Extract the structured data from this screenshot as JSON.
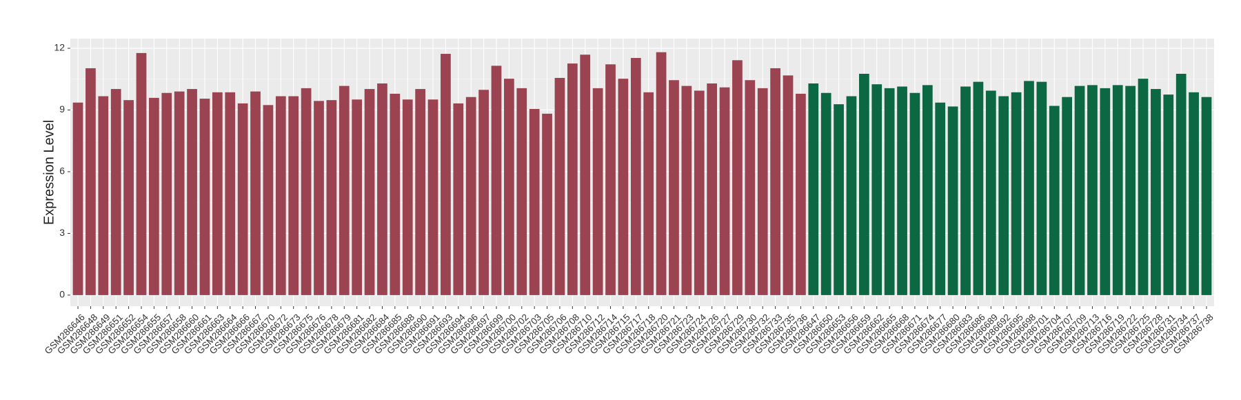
{
  "chart_data": {
    "type": "bar",
    "y_label": "Expression Level",
    "categories": [
      "GSM286646",
      "GSM286648",
      "GSM286649",
      "GSM286651",
      "GSM286652",
      "GSM286654",
      "GSM286655",
      "GSM286657",
      "GSM286658",
      "GSM286660",
      "GSM286661",
      "GSM286663",
      "GSM286664",
      "GSM286666",
      "GSM286667",
      "GSM286670",
      "GSM286672",
      "GSM286673",
      "GSM286675",
      "GSM286676",
      "GSM286678",
      "GSM286679",
      "GSM286681",
      "GSM286682",
      "GSM286684",
      "GSM286685",
      "GSM286688",
      "GSM286690",
      "GSM286691",
      "GSM286693",
      "GSM286694",
      "GSM286696",
      "GSM286697",
      "GSM286699",
      "GSM286700",
      "GSM286702",
      "GSM286703",
      "GSM286705",
      "GSM286706",
      "GSM286708",
      "GSM286710",
      "GSM286712",
      "GSM286714",
      "GSM286715",
      "GSM286717",
      "GSM286718",
      "GSM286720",
      "GSM286721",
      "GSM286723",
      "GSM286724",
      "GSM286726",
      "GSM286727",
      "GSM286729",
      "GSM286730",
      "GSM286732",
      "GSM286733",
      "GSM286735",
      "GSM286736",
      "GSM286647",
      "GSM286650",
      "GSM286653",
      "GSM286656",
      "GSM286659",
      "GSM286662",
      "GSM286665",
      "GSM286668",
      "GSM286671",
      "GSM286674",
      "GSM286677",
      "GSM286680",
      "GSM286683",
      "GSM286686",
      "GSM286689",
      "GSM286692",
      "GSM286695",
      "GSM286698",
      "GSM286701",
      "GSM286704",
      "GSM286707",
      "GSM286709",
      "GSM286713",
      "GSM286716",
      "GSM286719",
      "GSM286722",
      "GSM286725",
      "GSM286728",
      "GSM286731",
      "GSM286734",
      "GSM286737",
      "GSM286738"
    ],
    "values": [
      9.36,
      11.03,
      9.67,
      10.02,
      9.48,
      11.77,
      9.59,
      9.83,
      9.9,
      10.02,
      9.55,
      9.86,
      9.86,
      9.32,
      9.9,
      9.24,
      9.67,
      9.67,
      10.06,
      9.44,
      9.48,
      10.17,
      9.51,
      10.02,
      10.29,
      9.79,
      9.51,
      10.02,
      9.51,
      11.73,
      9.32,
      9.63,
      9.98,
      11.15,
      10.52,
      10.06,
      9.05,
      8.82,
      10.56,
      11.26,
      11.69,
      10.06,
      11.22,
      10.52,
      11.53,
      9.86,
      11.81,
      10.45,
      10.17,
      9.94,
      10.29,
      10.1,
      11.42,
      10.45,
      10.06,
      11.03,
      10.68,
      9.79,
      10.29,
      9.83,
      9.28,
      9.67,
      10.76,
      10.25,
      10.06,
      10.14,
      9.83,
      10.21,
      9.36,
      9.17,
      10.14,
      10.37,
      9.94,
      9.67,
      9.86,
      10.41,
      10.37,
      9.2,
      9.63,
      10.17,
      10.21,
      10.06,
      10.21,
      10.17,
      10.52,
      10.02,
      9.75,
      10.76,
      9.86,
      9.63
    ],
    "colors": [
      "#9b4350",
      "#9b4350",
      "#9b4350",
      "#9b4350",
      "#9b4350",
      "#9b4350",
      "#9b4350",
      "#9b4350",
      "#9b4350",
      "#9b4350",
      "#9b4350",
      "#9b4350",
      "#9b4350",
      "#9b4350",
      "#9b4350",
      "#9b4350",
      "#9b4350",
      "#9b4350",
      "#9b4350",
      "#9b4350",
      "#9b4350",
      "#9b4350",
      "#9b4350",
      "#9b4350",
      "#9b4350",
      "#9b4350",
      "#9b4350",
      "#9b4350",
      "#9b4350",
      "#9b4350",
      "#9b4350",
      "#9b4350",
      "#9b4350",
      "#9b4350",
      "#9b4350",
      "#9b4350",
      "#9b4350",
      "#9b4350",
      "#9b4350",
      "#9b4350",
      "#9b4350",
      "#9b4350",
      "#9b4350",
      "#9b4350",
      "#9b4350",
      "#9b4350",
      "#9b4350",
      "#9b4350",
      "#9b4350",
      "#9b4350",
      "#9b4350",
      "#9b4350",
      "#9b4350",
      "#9b4350",
      "#9b4350",
      "#9b4350",
      "#9b4350",
      "#9b4350",
      "#0b6842",
      "#0b6842",
      "#0b6842",
      "#0b6842",
      "#0b6842",
      "#0b6842",
      "#0b6842",
      "#0b6842",
      "#0b6842",
      "#0b6842",
      "#0b6842",
      "#0b6842",
      "#0b6842",
      "#0b6842",
      "#0b6842",
      "#0b6842",
      "#0b6842",
      "#0b6842",
      "#0b6842",
      "#0b6842",
      "#0b6842",
      "#0b6842",
      "#0b6842",
      "#0b6842",
      "#0b6842",
      "#0b6842",
      "#0b6842",
      "#0b6842",
      "#0b6842",
      "#0b6842",
      "#0b6842",
      "#0b6842"
    ],
    "ylim": [
      -0.54,
      12.47
    ],
    "yticks": [
      0,
      3,
      6,
      9,
      12
    ],
    "grid": true
  }
}
